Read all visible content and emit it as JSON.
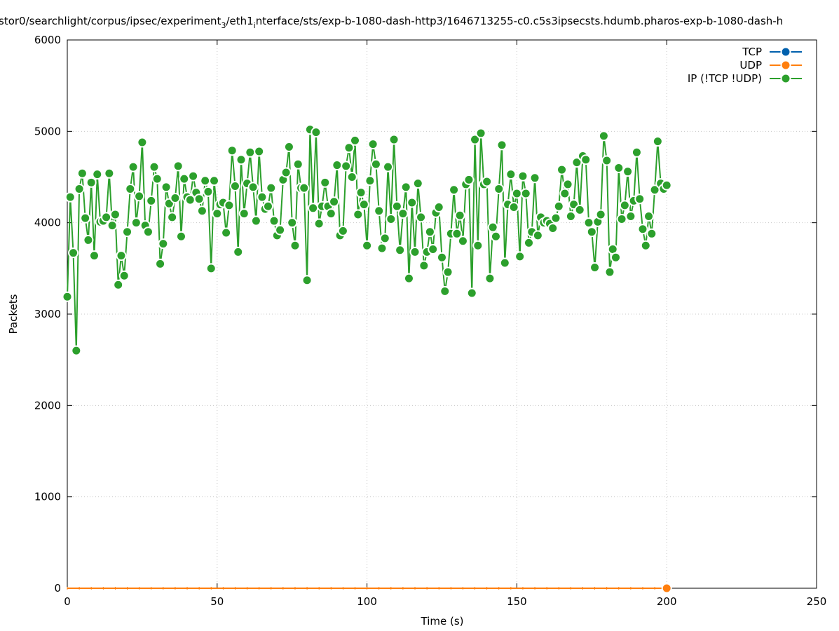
{
  "chart_data": {
    "type": "line",
    "title": "stor0/searchlight/corpus/ipsec/experiment_3/eth1_interface/sts/exp-b-1080-dash-http3/1646713255-c0.c5s3ipsecsts.hdumb.pharos-exp-b-1080-dash-h",
    "title_parts": {
      "p1": "stor0/searchlight/corpus/ipsec/experiment",
      "s1": "3",
      "p2": "/eth1",
      "s2": "i",
      "p3": "nterface/sts/exp-b-1080-dash-http3/1646713255-c0.c5s3ipsecsts.hdumb.pharos-exp-b-1080-dash-h"
    },
    "xlabel": "Time (s)",
    "ylabel": "Packets",
    "xlim": [
      0,
      250
    ],
    "ylim": [
      0,
      6000
    ],
    "x_ticks": [
      0,
      50,
      100,
      150,
      200,
      250
    ],
    "y_ticks": [
      0,
      1000,
      2000,
      3000,
      4000,
      5000,
      6000
    ],
    "grid": true,
    "legend_position": "top-right",
    "series": [
      {
        "name": "TCP",
        "color": "#0060ad",
        "x_start": 0,
        "x_step": 1,
        "values": [
          0,
          0,
          0,
          0,
          0,
          0,
          0,
          0,
          0,
          0,
          0,
          0,
          0,
          0,
          0,
          0,
          0,
          0,
          0,
          0,
          0,
          0,
          0,
          0,
          0,
          0,
          0,
          0,
          0,
          0,
          0,
          0,
          0,
          0,
          0,
          0,
          0,
          0,
          0,
          0,
          0,
          0,
          0,
          0,
          0,
          0,
          0,
          0,
          0,
          0,
          0,
          0,
          0,
          0,
          0,
          0,
          0,
          0,
          0,
          0,
          0,
          0,
          0,
          0,
          0,
          0,
          0,
          0,
          0,
          0,
          0,
          0,
          0,
          0,
          0,
          0,
          0,
          0,
          0,
          0,
          0,
          0,
          0,
          0,
          0,
          0,
          0,
          0,
          0,
          0,
          0,
          0,
          0,
          0,
          0,
          0,
          0,
          0,
          0,
          0,
          0,
          0,
          0,
          0,
          0,
          0,
          0,
          0,
          0,
          0,
          0,
          0,
          0,
          0,
          0,
          0,
          0,
          0,
          0,
          0,
          0,
          0,
          0,
          0,
          0,
          0,
          0,
          0,
          0,
          0,
          0,
          0,
          0,
          0,
          0,
          0,
          0,
          0,
          0,
          0,
          0,
          0,
          0,
          0,
          0,
          0,
          0,
          0,
          0,
          0,
          0,
          0,
          0,
          0,
          0,
          0,
          0,
          0,
          0,
          0,
          0,
          0,
          0,
          0,
          0,
          0,
          0,
          0,
          0,
          0,
          0,
          0,
          0,
          0,
          0,
          0,
          0,
          0,
          0,
          0,
          0,
          0,
          0,
          0,
          0,
          0,
          0,
          0,
          0,
          0,
          0,
          0,
          0,
          0,
          0,
          0,
          0,
          0,
          0,
          0,
          0
        ]
      },
      {
        "name": "UDP",
        "color": "#ff7f0e",
        "x_start": 0,
        "x_step": 1,
        "values": [
          0,
          0,
          0,
          0,
          0,
          0,
          0,
          0,
          0,
          0,
          0,
          0,
          0,
          0,
          0,
          0,
          0,
          0,
          0,
          0,
          0,
          0,
          0,
          0,
          0,
          0,
          0,
          0,
          0,
          0,
          0,
          0,
          0,
          0,
          0,
          0,
          0,
          0,
          0,
          0,
          0,
          0,
          0,
          0,
          0,
          0,
          0,
          0,
          0,
          0,
          0,
          0,
          0,
          0,
          0,
          0,
          0,
          0,
          0,
          0,
          0,
          0,
          0,
          0,
          0,
          0,
          0,
          0,
          0,
          0,
          0,
          0,
          0,
          0,
          0,
          0,
          0,
          0,
          0,
          0,
          0,
          0,
          0,
          0,
          0,
          0,
          0,
          0,
          0,
          0,
          0,
          0,
          0,
          0,
          0,
          0,
          0,
          0,
          0,
          0,
          0,
          0,
          0,
          0,
          0,
          0,
          0,
          0,
          0,
          0,
          0,
          0,
          0,
          0,
          0,
          0,
          0,
          0,
          0,
          0,
          0,
          0,
          0,
          0,
          0,
          0,
          0,
          0,
          0,
          0,
          0,
          0,
          0,
          0,
          0,
          0,
          0,
          0,
          0,
          0,
          0,
          0,
          0,
          0,
          0,
          0,
          0,
          0,
          0,
          0,
          0,
          0,
          0,
          0,
          0,
          0,
          0,
          0,
          0,
          0,
          0,
          0,
          0,
          0,
          0,
          0,
          0,
          0,
          0,
          0,
          0,
          0,
          0,
          0,
          0,
          0,
          0,
          0,
          0,
          0,
          0,
          0,
          0,
          0,
          0,
          0,
          0,
          0,
          0,
          0,
          0,
          0,
          0,
          0,
          0,
          0,
          0,
          0,
          0,
          0,
          0
        ]
      },
      {
        "name": "IP (!TCP  !UDP)",
        "color": "#2ca02c",
        "x_start": 0,
        "x_step": 1,
        "values": [
          3190,
          4280,
          3670,
          2600,
          4370,
          4540,
          4050,
          3810,
          4440,
          3640,
          4530,
          4010,
          4020,
          4060,
          4540,
          3970,
          4090,
          3320,
          3640,
          3420,
          3900,
          4370,
          4610,
          4000,
          4290,
          4880,
          3970,
          3900,
          4240,
          4610,
          4480,
          3550,
          3770,
          4390,
          4210,
          4060,
          4270,
          4620,
          3850,
          4480,
          4280,
          4250,
          4510,
          4330,
          4260,
          4130,
          4460,
          4340,
          3500,
          4460,
          4100,
          4200,
          4220,
          3890,
          4190,
          4790,
          4400,
          3680,
          4690,
          4100,
          4430,
          4770,
          4390,
          4020,
          4780,
          4280,
          4150,
          4180,
          4380,
          4020,
          3860,
          3920,
          4470,
          4550,
          4830,
          4000,
          3750,
          4640,
          4380,
          4380,
          3370,
          5020,
          4160,
          4990,
          3990,
          4180,
          4440,
          4180,
          4100,
          4230,
          4630,
          3860,
          3910,
          4620,
          4820,
          4500,
          4900,
          4090,
          4330,
          4200,
          3750,
          4460,
          4860,
          4640,
          4130,
          3720,
          3830,
          4610,
          4040,
          4910,
          4180,
          3700,
          4100,
          4390,
          3390,
          4220,
          3680,
          4430,
          4060,
          3530,
          3680,
          3900,
          3710,
          4110,
          4170,
          3620,
          3250,
          3460,
          3880,
          4360,
          3880,
          4080,
          3800,
          4420,
          4470,
          3230,
          4910,
          3750,
          4980,
          4420,
          4450,
          3390,
          3950,
          3850,
          4370,
          4850,
          3560,
          4200,
          4530,
          4170,
          4320,
          3630,
          4510,
          4320,
          3780,
          3900,
          4490,
          3860,
          4060,
          4000,
          4020,
          3990,
          3940,
          4050,
          4180,
          4580,
          4320,
          4420,
          4070,
          4200,
          4660,
          4140,
          4730,
          4690,
          4000,
          3900,
          3510,
          4010,
          4090,
          4950,
          4680,
          3460,
          3710,
          3620,
          4600,
          4040,
          4190,
          4560,
          4070,
          4240,
          4770,
          4260,
          3930,
          3750,
          4070,
          3880,
          4360,
          4890,
          4430,
          4370,
          4410
        ]
      }
    ]
  }
}
